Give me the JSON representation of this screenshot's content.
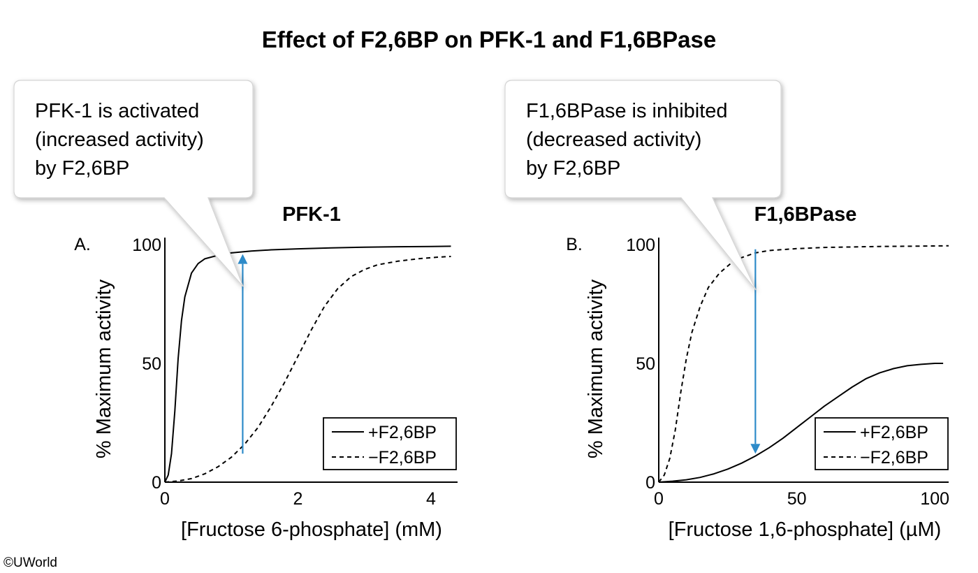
{
  "title": "Effect of F2,6BP on PFK-1 and F1,6BPase",
  "copyright": "©UWorld",
  "colors": {
    "arrow": "#2e8bc9",
    "line": "#000000",
    "callout_border": "#d4d4d4"
  },
  "chart_data": [
    {
      "type": "line",
      "panel_label": "A.",
      "title": "PFK-1",
      "xlabel": "[Fructose 6-phosphate] (mM)",
      "ylabel": "% Maximum activity",
      "xlim": [
        0,
        4.4
      ],
      "ylim": [
        0,
        100
      ],
      "xticks": [
        0,
        2,
        4
      ],
      "yticks": [
        0,
        50,
        100
      ],
      "legend_position": "bottom-right",
      "series": [
        {
          "name": "+F2,6BP",
          "style": "solid",
          "x": [
            0,
            0.05,
            0.1,
            0.15,
            0.2,
            0.25,
            0.3,
            0.4,
            0.5,
            0.6,
            0.8,
            1.0,
            1.3,
            1.6,
            2.0,
            2.5,
            3.0,
            3.5,
            4.0,
            4.3
          ],
          "y": [
            0,
            3,
            12,
            30,
            52,
            68,
            78,
            88,
            92,
            94,
            95.5,
            96.5,
            97.3,
            97.8,
            98.2,
            98.6,
            98.9,
            99.1,
            99.2,
            99.3
          ]
        },
        {
          "name": "−F2,6BP",
          "style": "dashed",
          "x": [
            0,
            0.2,
            0.4,
            0.6,
            0.8,
            1.0,
            1.2,
            1.4,
            1.6,
            1.8,
            2.0,
            2.2,
            2.4,
            2.6,
            2.8,
            3.0,
            3.2,
            3.5,
            3.8,
            4.1,
            4.3
          ],
          "y": [
            0,
            0.5,
            1.5,
            3.5,
            6.5,
            10.5,
            16,
            23,
            32,
            42,
            53,
            64,
            74,
            81.5,
            86.5,
            89.5,
            91.5,
            93,
            94,
            94.7,
            95
          ]
        }
      ],
      "arrow": {
        "x": 1.17,
        "from_y": 12,
        "to_y": 96
      },
      "callout": {
        "lines": [
          "PFK-1 is activated",
          "(increased activity)",
          "by F2,6BP"
        ]
      }
    },
    {
      "type": "line",
      "panel_label": "B.",
      "title": "F1,6BPase",
      "xlabel": "[Fructose 1,6-phosphate] (µM)",
      "ylabel": "% Maximum activity",
      "xlim": [
        0,
        105
      ],
      "ylim": [
        0,
        100
      ],
      "xticks": [
        0,
        50,
        100
      ],
      "yticks": [
        0,
        50,
        100
      ],
      "legend_position": "bottom-right",
      "series": [
        {
          "name": "+F2,6BP",
          "style": "solid",
          "x": [
            0,
            5,
            10,
            15,
            20,
            25,
            30,
            35,
            40,
            45,
            50,
            55,
            60,
            65,
            70,
            75,
            80,
            85,
            90,
            95,
            100,
            103
          ],
          "y": [
            0,
            0.4,
            1,
            2,
            3.5,
            5.5,
            8,
            11,
            14.5,
            18.5,
            23,
            27.5,
            32,
            36,
            40,
            43.5,
            46,
            47.8,
            49,
            49.6,
            50,
            50
          ]
        },
        {
          "name": "−F2,6BP",
          "style": "dashed",
          "x": [
            0,
            2,
            4,
            6,
            8,
            10,
            12,
            15,
            18,
            22,
            26,
            30,
            35,
            40,
            50,
            60,
            70,
            80,
            90,
            100,
            105
          ],
          "y": [
            0,
            3,
            10,
            22,
            38,
            52,
            63,
            74,
            82,
            88,
            92,
            94.5,
            96.5,
            97.5,
            98.3,
            98.8,
            99,
            99.2,
            99.3,
            99.4,
            99.5
          ]
        }
      ],
      "arrow": {
        "x": 35,
        "from_y": 98,
        "to_y": 12
      },
      "callout": {
        "lines": [
          "F1,6BPase is inhibited",
          "(decreased activity)",
          "by F2,6BP"
        ]
      }
    }
  ]
}
